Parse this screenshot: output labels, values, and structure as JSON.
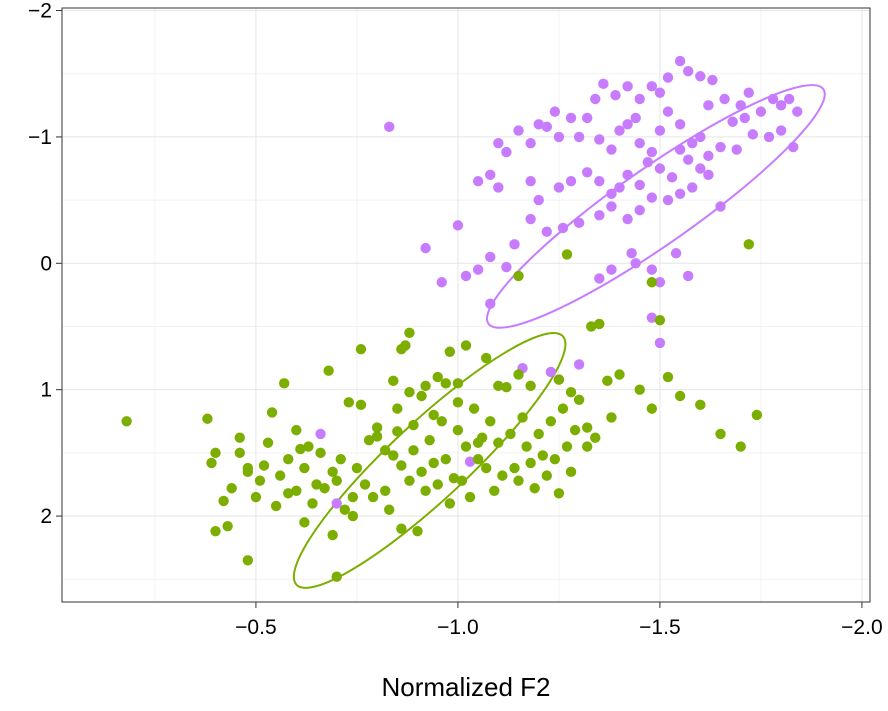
{
  "chart_data": {
    "type": "scatter",
    "title": "",
    "xlabel": "Normalized F2",
    "ylabel": "",
    "x_reversed": true,
    "y_reversed": true,
    "xlim": [
      -0.02,
      -2.02
    ],
    "ylim": [
      2.68,
      -2.02
    ],
    "x_ticks": [
      -0.5,
      -1.0,
      -1.5,
      -2.0
    ],
    "x_tick_labels": [
      "−0.5",
      "−1.0",
      "−1.5",
      "−2.0"
    ],
    "y_ticks": [
      -2,
      -1,
      0,
      1,
      2
    ],
    "y_tick_labels": [
      "−2",
      "−1",
      "0",
      "1",
      "2"
    ],
    "grid": true,
    "legend": "none",
    "series": [
      {
        "color": "#c77cff",
        "ellipse": {
          "cx": -1.49,
          "cy": -0.45,
          "rx": 0.55,
          "ry": 0.58,
          "angle_deg": -35
        },
        "points": [
          [
            -1.22,
            -1.08
          ],
          [
            -1.25,
            -1.0
          ],
          [
            -1.3,
            -1.0
          ],
          [
            -1.35,
            -0.98
          ],
          [
            -1.38,
            -0.9
          ],
          [
            -1.4,
            -1.05
          ],
          [
            -1.42,
            -1.1
          ],
          [
            -1.44,
            -1.15
          ],
          [
            -1.45,
            -0.95
          ],
          [
            -1.48,
            -0.88
          ],
          [
            -1.5,
            -1.05
          ],
          [
            -1.52,
            -1.2
          ],
          [
            -1.55,
            -1.1
          ],
          [
            -1.58,
            -0.95
          ],
          [
            -1.6,
            -1.0
          ],
          [
            -1.62,
            -0.85
          ],
          [
            -1.65,
            -0.92
          ],
          [
            -1.68,
            -1.12
          ],
          [
            -1.7,
            -1.25
          ],
          [
            -1.72,
            -1.35
          ],
          [
            -1.75,
            -1.2
          ],
          [
            -1.78,
            -1.3
          ],
          [
            -1.8,
            -1.05
          ],
          [
            -1.82,
            -1.3
          ],
          [
            -1.83,
            -0.92
          ],
          [
            -1.77,
            -1.0
          ],
          [
            -1.73,
            -1.02
          ],
          [
            -1.66,
            -1.3
          ],
          [
            -1.63,
            -1.45
          ],
          [
            -1.6,
            -1.48
          ],
          [
            -1.57,
            -1.52
          ],
          [
            -1.55,
            -1.6
          ],
          [
            -1.52,
            -1.47
          ],
          [
            -1.5,
            -1.35
          ],
          [
            -1.48,
            -1.4
          ],
          [
            -1.45,
            -1.3
          ],
          [
            -1.42,
            -1.4
          ],
          [
            -1.39,
            -1.33
          ],
          [
            -1.36,
            -1.42
          ],
          [
            -1.34,
            -1.3
          ],
          [
            -1.32,
            -1.15
          ],
          [
            -1.28,
            -1.15
          ],
          [
            -1.24,
            -1.2
          ],
          [
            -1.2,
            -1.1
          ],
          [
            -1.18,
            -0.95
          ],
          [
            -1.15,
            -1.05
          ],
          [
            -1.12,
            -0.88
          ],
          [
            -1.1,
            -0.95
          ],
          [
            -1.08,
            -0.7
          ],
          [
            -1.05,
            -0.65
          ],
          [
            -1.1,
            -0.6
          ],
          [
            -1.18,
            -0.65
          ],
          [
            -1.2,
            -0.5
          ],
          [
            -1.25,
            -0.6
          ],
          [
            -1.28,
            -0.65
          ],
          [
            -1.32,
            -0.72
          ],
          [
            -1.35,
            -0.65
          ],
          [
            -1.38,
            -0.55
          ],
          [
            -1.4,
            -0.6
          ],
          [
            -1.42,
            -0.7
          ],
          [
            -1.45,
            -0.62
          ],
          [
            -1.47,
            -0.8
          ],
          [
            -1.5,
            -0.75
          ],
          [
            -1.53,
            -0.68
          ],
          [
            -1.55,
            -0.9
          ],
          [
            -1.57,
            -0.82
          ],
          [
            -1.6,
            -0.75
          ],
          [
            -1.62,
            -0.7
          ],
          [
            -1.58,
            -0.6
          ],
          [
            -1.55,
            -0.55
          ],
          [
            -1.52,
            -0.5
          ],
          [
            -1.48,
            -0.52
          ],
          [
            -1.45,
            -0.42
          ],
          [
            -1.42,
            -0.35
          ],
          [
            -1.38,
            -0.45
          ],
          [
            -1.35,
            -0.38
          ],
          [
            -1.3,
            -0.32
          ],
          [
            -1.26,
            -0.28
          ],
          [
            -1.22,
            -0.25
          ],
          [
            -1.18,
            -0.35
          ],
          [
            -1.14,
            -0.15
          ],
          [
            -1.12,
            0.03
          ],
          [
            -1.08,
            -0.05
          ],
          [
            -1.05,
            0.05
          ],
          [
            -1.02,
            0.1
          ],
          [
            -1.0,
            -0.3
          ],
          [
            -1.08,
            0.32
          ],
          [
            -0.96,
            0.15
          ],
          [
            -0.92,
            -0.12
          ],
          [
            -0.83,
            -1.08
          ],
          [
            -1.43,
            -0.08
          ],
          [
            -1.48,
            0.05
          ],
          [
            -1.5,
            0.15
          ],
          [
            -1.54,
            -0.08
          ],
          [
            -1.57,
            0.1
          ],
          [
            -1.35,
            0.12
          ],
          [
            -1.38,
            0.05
          ],
          [
            -1.44,
            0.0
          ],
          [
            -1.65,
            -0.45
          ],
          [
            -1.69,
            -0.9
          ],
          [
            -1.62,
            -1.25
          ],
          [
            -1.71,
            -1.15
          ],
          [
            -1.8,
            -1.25
          ],
          [
            -1.84,
            -1.2
          ],
          [
            -1.48,
            0.43
          ],
          [
            -1.5,
            0.63
          ],
          [
            -1.16,
            0.83
          ],
          [
            -1.23,
            0.86
          ],
          [
            -1.3,
            0.8
          ],
          [
            -1.25,
            0.92
          ],
          [
            -1.03,
            1.57
          ],
          [
            -0.66,
            1.35
          ],
          [
            -0.7,
            1.9
          ]
        ]
      },
      {
        "color": "#7cae00",
        "ellipse": {
          "cx": -0.93,
          "cy": 1.56,
          "rx": 0.49,
          "ry": 0.59,
          "angle_deg": -43
        },
        "points": [
          [
            -0.18,
            1.25
          ],
          [
            -0.38,
            1.23
          ],
          [
            -0.39,
            1.58
          ],
          [
            -0.4,
            2.12
          ],
          [
            -0.43,
            2.08
          ],
          [
            -0.46,
            1.38
          ],
          [
            -0.48,
            1.65
          ],
          [
            -0.48,
            2.35
          ],
          [
            -0.52,
            1.6
          ],
          [
            -0.54,
            1.18
          ],
          [
            -0.57,
            0.95
          ],
          [
            -0.58,
            1.82
          ],
          [
            -0.6,
            1.32
          ],
          [
            -0.61,
            1.47
          ],
          [
            -0.62,
            2.05
          ],
          [
            -0.63,
            1.45
          ],
          [
            -0.65,
            1.75
          ],
          [
            -0.68,
            0.85
          ],
          [
            -0.69,
            2.15
          ],
          [
            -0.7,
            1.72
          ],
          [
            -0.7,
            2.48
          ],
          [
            -0.72,
            1.95
          ],
          [
            -0.74,
            1.85
          ],
          [
            -0.75,
            1.62
          ],
          [
            -0.77,
            1.75
          ],
          [
            -0.79,
            1.85
          ],
          [
            -0.8,
            1.37
          ],
          [
            -0.82,
            1.8
          ],
          [
            -0.84,
            1.52
          ],
          [
            -0.85,
            1.33
          ],
          [
            -0.86,
            2.1
          ],
          [
            -0.87,
            0.65
          ],
          [
            -0.88,
            1.72
          ],
          [
            -0.89,
            1.48
          ],
          [
            -0.9,
            2.12
          ],
          [
            -0.91,
            1.65
          ],
          [
            -0.92,
            1.8
          ],
          [
            -0.93,
            1.4
          ],
          [
            -0.94,
            1.58
          ],
          [
            -0.95,
            1.75
          ],
          [
            -0.96,
            1.25
          ],
          [
            -0.97,
            1.55
          ],
          [
            -0.98,
            1.9
          ],
          [
            -0.99,
            1.7
          ],
          [
            -1.0,
            0.95
          ],
          [
            -1.0,
            1.32
          ],
          [
            -1.01,
            1.72
          ],
          [
            -1.02,
            1.45
          ],
          [
            -1.03,
            1.85
          ],
          [
            -1.04,
            1.15
          ],
          [
            -1.05,
            1.55
          ],
          [
            -1.06,
            1.38
          ],
          [
            -1.07,
            1.62
          ],
          [
            -1.08,
            1.25
          ],
          [
            -1.09,
            1.8
          ],
          [
            -1.1,
            1.42
          ],
          [
            -1.11,
            1.68
          ],
          [
            -1.12,
            0.98
          ],
          [
            -1.13,
            1.35
          ],
          [
            -1.14,
            1.62
          ],
          [
            -1.15,
            1.72
          ],
          [
            -1.16,
            1.22
          ],
          [
            -1.17,
            1.45
          ],
          [
            -1.18,
            1.58
          ],
          [
            -1.19,
            1.78
          ],
          [
            -1.2,
            1.35
          ],
          [
            -1.21,
            1.52
          ],
          [
            -1.22,
            1.68
          ],
          [
            -1.23,
            1.25
          ],
          [
            -1.24,
            1.55
          ],
          [
            -1.25,
            1.82
          ],
          [
            -1.26,
            1.15
          ],
          [
            -1.27,
            1.45
          ],
          [
            -1.28,
            1.65
          ],
          [
            -1.29,
            1.32
          ],
          [
            -1.3,
            1.08
          ],
          [
            -1.32,
            1.45
          ],
          [
            -1.34,
            1.38
          ],
          [
            -1.37,
            0.93
          ],
          [
            -1.4,
            0.88
          ],
          [
            -1.45,
            1.0
          ],
          [
            -1.48,
            1.15
          ],
          [
            -1.5,
            0.45
          ],
          [
            -1.52,
            0.9
          ],
          [
            -1.55,
            1.05
          ],
          [
            -1.6,
            1.12
          ],
          [
            -1.65,
            1.35
          ],
          [
            -1.7,
            1.45
          ],
          [
            -1.74,
            1.2
          ],
          [
            -1.38,
            1.22
          ],
          [
            -1.32,
            1.3
          ],
          [
            -1.28,
            1.02
          ],
          [
            -1.35,
            0.48
          ],
          [
            -1.33,
            0.5
          ],
          [
            -1.18,
            0.97
          ],
          [
            -1.25,
            0.92
          ],
          [
            -1.15,
            0.88
          ],
          [
            -1.07,
            0.75
          ],
          [
            -1.02,
            0.65
          ],
          [
            -0.98,
            0.7
          ],
          [
            -0.95,
            0.9
          ],
          [
            -0.92,
            0.97
          ],
          [
            -0.88,
            1.02
          ],
          [
            -0.85,
            1.15
          ],
          [
            -0.82,
            1.48
          ],
          [
            -0.8,
            1.3
          ],
          [
            -0.78,
            1.4
          ],
          [
            -0.76,
            1.12
          ],
          [
            -0.74,
            2.0
          ],
          [
            -0.73,
            1.1
          ],
          [
            -0.71,
            1.55
          ],
          [
            -0.69,
            1.65
          ],
          [
            -0.67,
            1.78
          ],
          [
            -0.66,
            1.5
          ],
          [
            -0.64,
            1.9
          ],
          [
            -0.62,
            1.62
          ],
          [
            -0.6,
            1.8
          ],
          [
            -0.58,
            1.55
          ],
          [
            -0.56,
            1.68
          ],
          [
            -0.55,
            1.92
          ],
          [
            -0.53,
            1.42
          ],
          [
            -0.51,
            1.72
          ],
          [
            -0.5,
            1.85
          ],
          [
            -0.48,
            1.62
          ],
          [
            -0.46,
            1.5
          ],
          [
            -0.44,
            1.78
          ],
          [
            -0.42,
            1.88
          ],
          [
            -0.4,
            1.5
          ],
          [
            -0.88,
            0.55
          ],
          [
            -0.86,
            0.68
          ],
          [
            -0.84,
            0.93
          ],
          [
            -0.76,
            0.68
          ],
          [
            -1.15,
            0.1
          ],
          [
            -1.27,
            -0.07
          ],
          [
            -1.72,
            -0.15
          ],
          [
            -1.48,
            0.15
          ],
          [
            -1.1,
            0.97
          ],
          [
            -1.05,
            1.42
          ],
          [
            -1.0,
            1.1
          ],
          [
            -0.97,
            0.95
          ],
          [
            -0.94,
            1.2
          ],
          [
            -0.91,
            1.05
          ],
          [
            -0.89,
            1.28
          ],
          [
            -0.86,
            1.6
          ],
          [
            -0.83,
            1.95
          ]
        ]
      }
    ]
  }
}
